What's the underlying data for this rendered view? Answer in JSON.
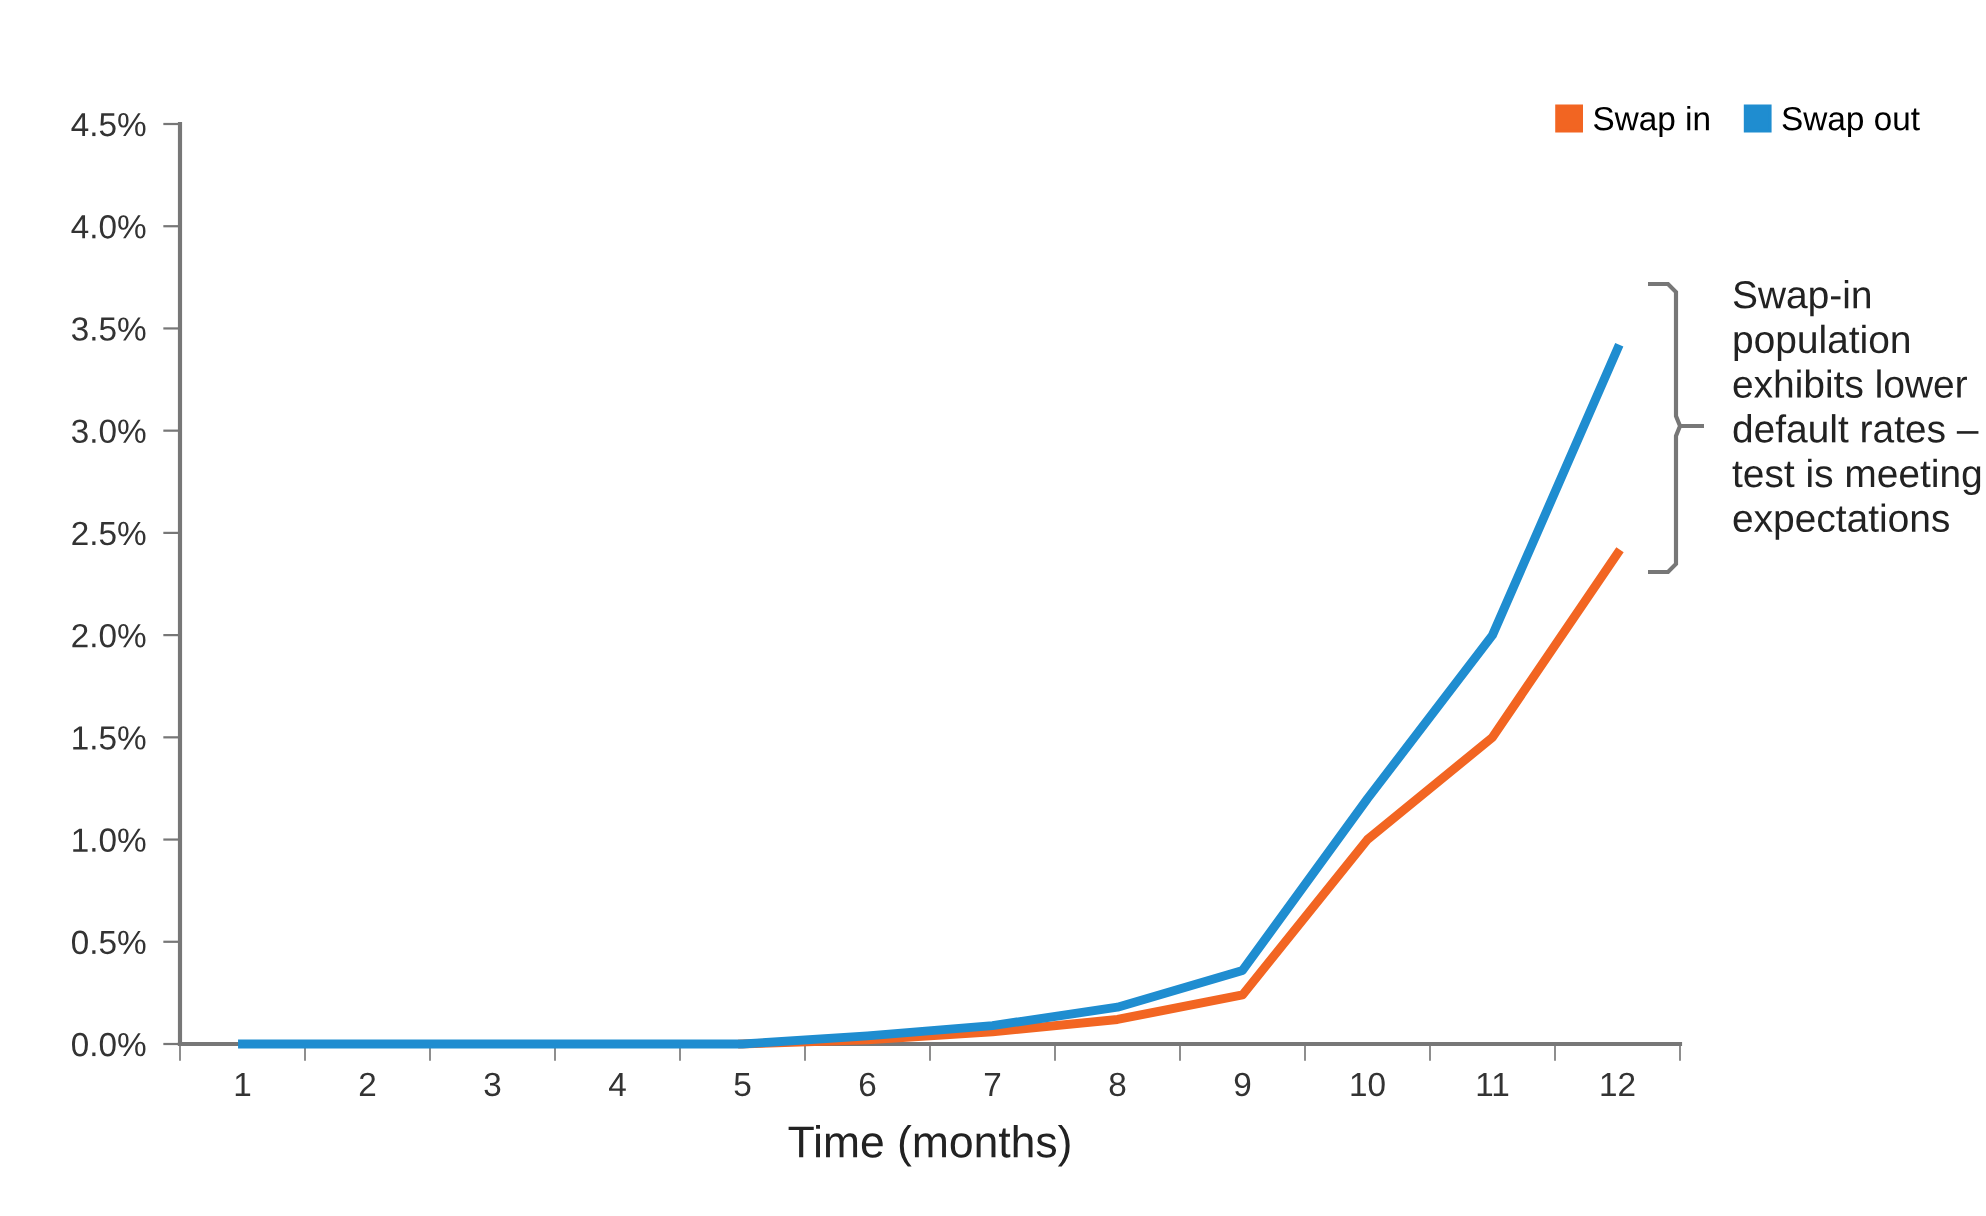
{
  "chart_data": {
    "type": "line",
    "xlabel": "Time (months)",
    "categories": [
      "1",
      "2",
      "3",
      "4",
      "5",
      "6",
      "7",
      "8",
      "9",
      "10",
      "11",
      "12"
    ],
    "series": [
      {
        "name": "Swap in",
        "color": "#f26522",
        "values": [
          null,
          null,
          null,
          null,
          0,
          0.02,
          0.06,
          0.12,
          0.24,
          1.0,
          1.5,
          2.4
        ]
      },
      {
        "name": "Swap out",
        "color": "#1f8dd0",
        "values": [
          0,
          0,
          0,
          0,
          0,
          0.04,
          0.09,
          0.18,
          0.36,
          1.2,
          2.0,
          3.4
        ]
      }
    ],
    "ylim": [
      0,
      4.5
    ],
    "yticks": [
      {
        "value": 0,
        "label": "0.0%"
      },
      {
        "value": 0.5,
        "label": "0.5%"
      },
      {
        "value": 1.0,
        "label": "1.0%"
      },
      {
        "value": 1.5,
        "label": "1.5%"
      },
      {
        "value": 2.0,
        "label": "2.0%"
      },
      {
        "value": 2.5,
        "label": "2.5%"
      },
      {
        "value": 3.0,
        "label": "3.0%"
      },
      {
        "value": 3.5,
        "label": "3.5%"
      },
      {
        "value": 4.0,
        "label": "4.0%"
      },
      {
        "value": 4.5,
        "label": "4.5%"
      }
    ],
    "annotations": [
      "Swap-in\npopulation\nexhibits lower\ndefault rates –\ntest is meeting\nexpectations"
    ],
    "legend": "top right",
    "grid": false,
    "marker": "none",
    "line_style": "solid"
  }
}
